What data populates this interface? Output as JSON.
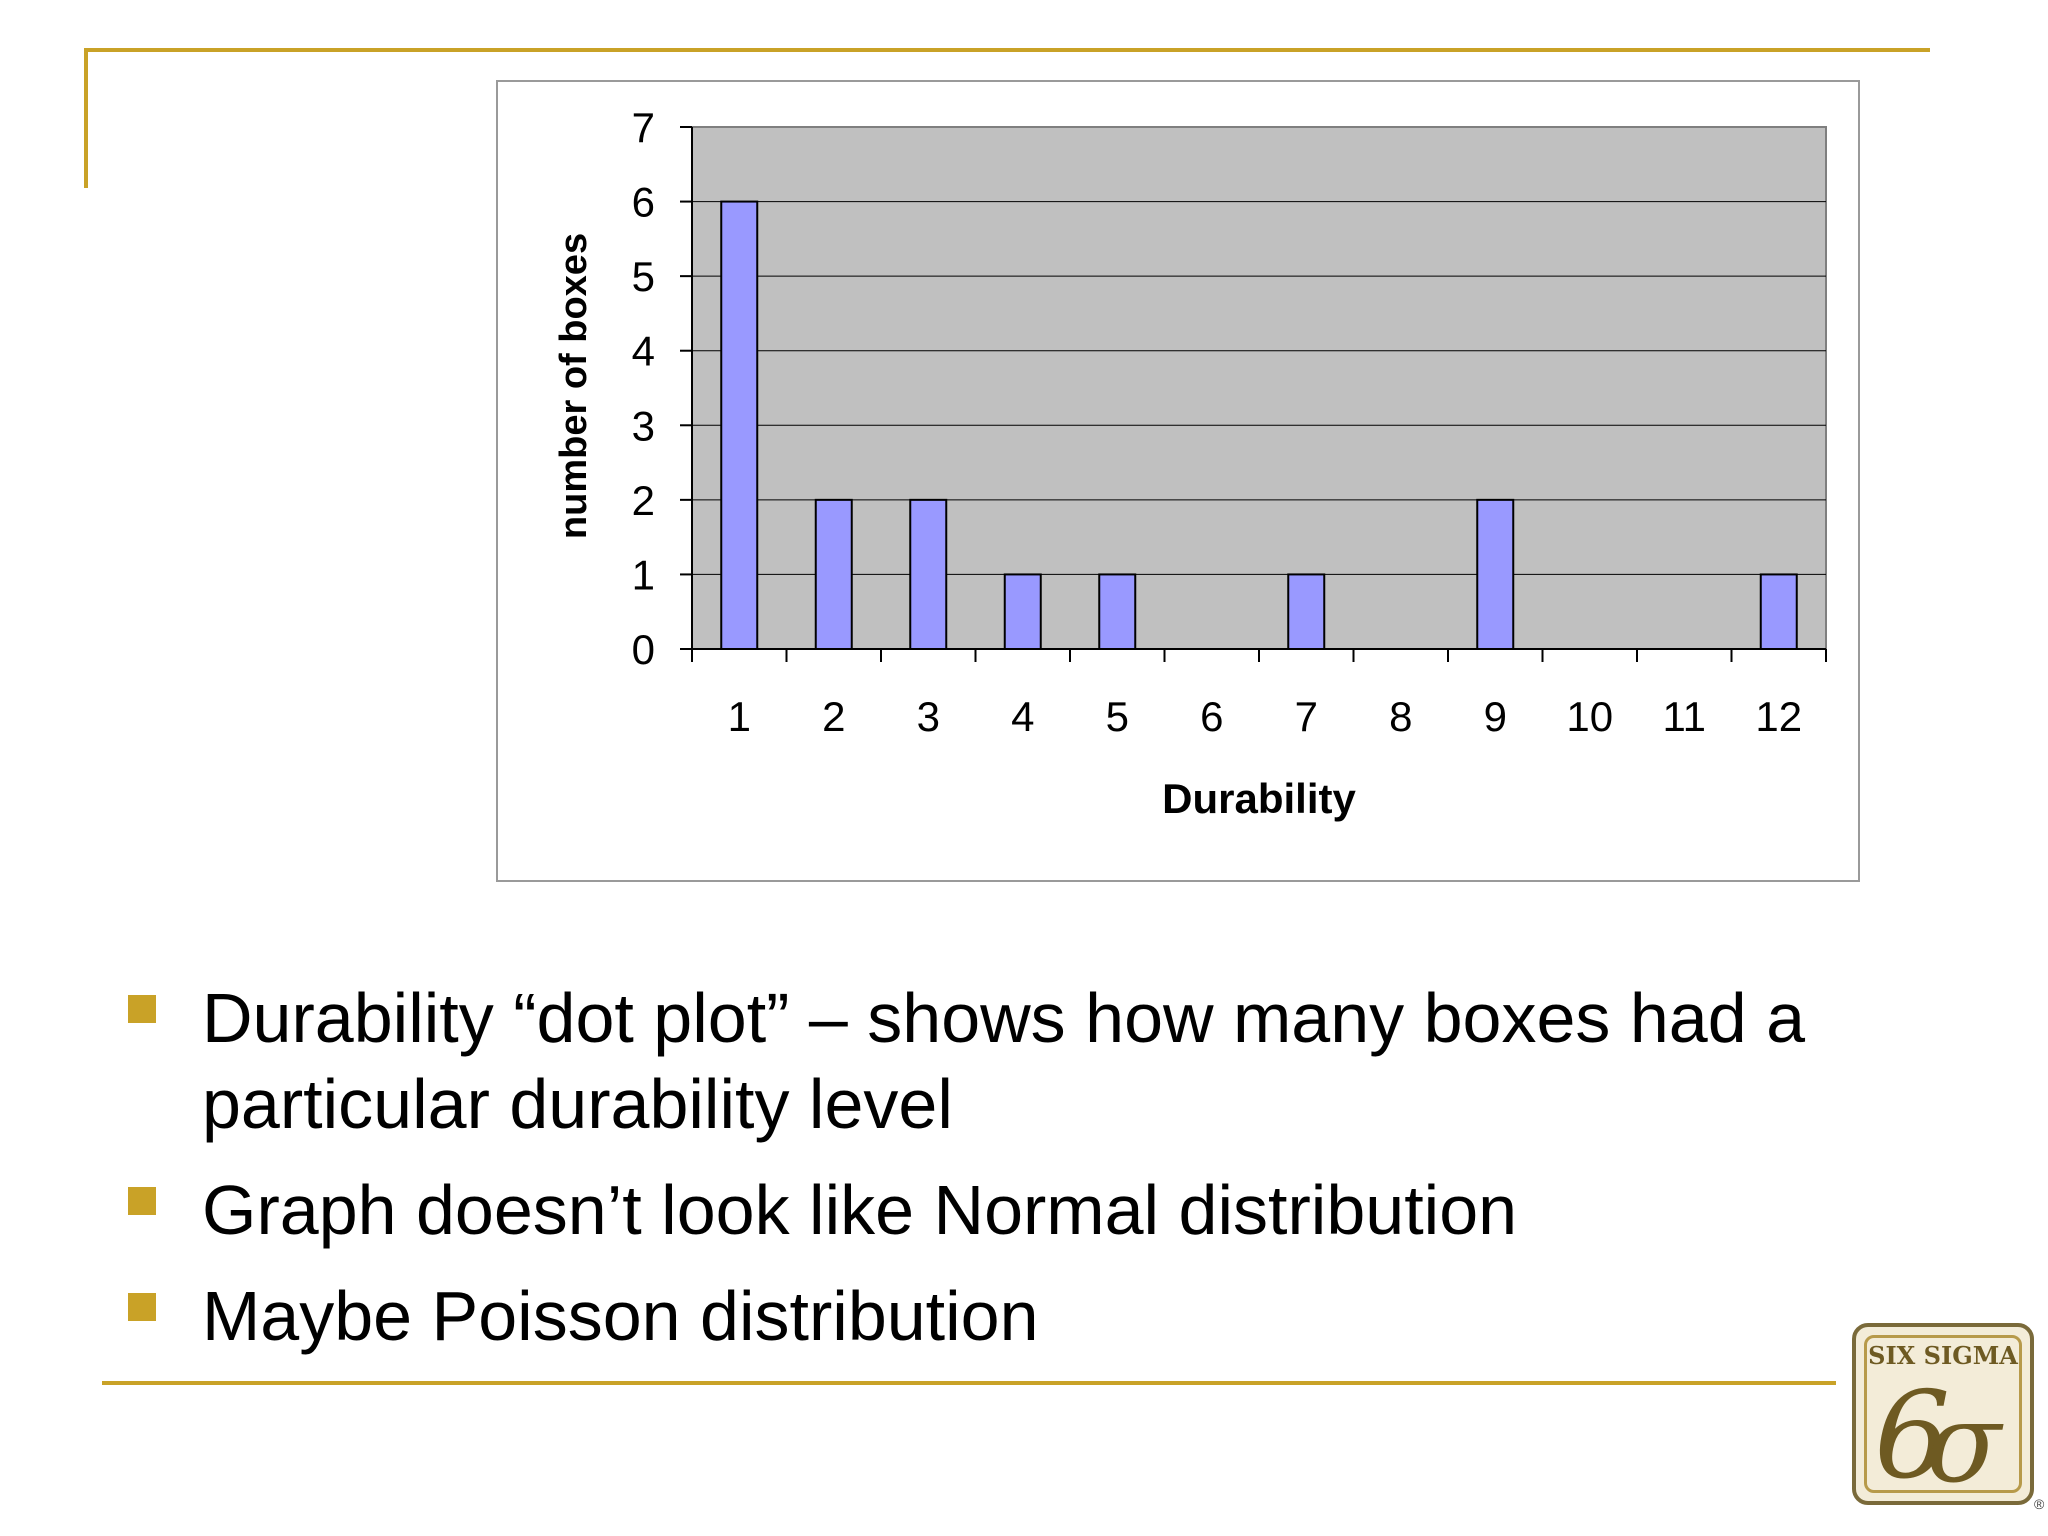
{
  "chart_data": {
    "type": "bar",
    "categories": [
      "1",
      "2",
      "3",
      "4",
      "5",
      "6",
      "7",
      "8",
      "9",
      "10",
      "11",
      "12"
    ],
    "values": [
      6,
      2,
      2,
      1,
      1,
      0,
      1,
      0,
      2,
      0,
      0,
      1
    ],
    "title": "",
    "xlabel": "Durability",
    "ylabel": "number of boxes",
    "ylim": [
      0,
      7
    ],
    "yticks": [
      "0",
      "1",
      "2",
      "3",
      "4",
      "5",
      "6",
      "7"
    ],
    "grid": true,
    "colors": {
      "bar": "#9999ff",
      "plot_bg": "#c0c0c0",
      "gridline": "#000000"
    }
  },
  "bullets": [
    "Durability “dot plot” – shows how many boxes had a particular durability level",
    "Graph doesn’t look like Normal distribution",
    "Maybe Poisson distribution"
  ],
  "logo": {
    "text": "SIX SIGMA",
    "mark": "6σ",
    "icon": "six-sigma-logo-icon"
  },
  "theme": {
    "accent": "#c9a227"
  }
}
